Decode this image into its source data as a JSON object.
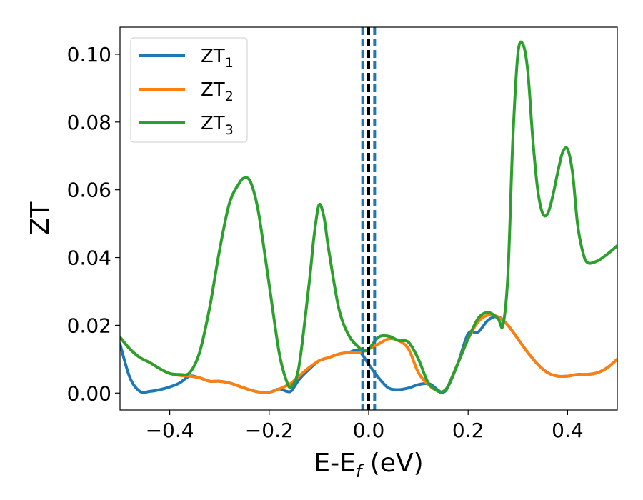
{
  "chart_data": {
    "type": "line",
    "xlabel": "E-E",
    "xlabel_sub": "f",
    "xlabel_unit": " (eV)",
    "ylabel": "ZT",
    "xlim": [
      -0.5,
      0.5
    ],
    "ylim": [
      -0.005,
      0.108
    ],
    "xticks": [
      -0.4,
      -0.2,
      0.0,
      0.2,
      0.4
    ],
    "xtick_labels": [
      "−0.4",
      "−0.2",
      "0.0",
      "0.2",
      "0.4"
    ],
    "yticks": [
      0.0,
      0.02,
      0.04,
      0.06,
      0.08,
      0.1
    ],
    "ytick_labels": [
      "0.00",
      "0.02",
      "0.04",
      "0.06",
      "0.08",
      "0.10"
    ],
    "grid": false,
    "legend_position": "top-left",
    "vertical_lines": [
      {
        "x": -0.012,
        "style": "dashed",
        "color": "#1f77b4"
      },
      {
        "x": 0.0,
        "style": "dashed",
        "color": "#000000"
      },
      {
        "x": 0.012,
        "style": "dashed",
        "color": "#1f77b4"
      }
    ],
    "series": [
      {
        "name": "ZT",
        "name_sub": "1",
        "color": "#1f77b4",
        "x": [
          -0.5,
          -0.48,
          -0.46,
          -0.44,
          -0.42,
          -0.4,
          -0.38,
          -0.36,
          -0.34,
          -0.32,
          -0.3,
          -0.28,
          -0.26,
          -0.24,
          -0.22,
          -0.2,
          -0.18,
          -0.165,
          -0.155,
          -0.14,
          -0.12,
          -0.1,
          -0.08,
          -0.06,
          -0.04,
          -0.02,
          0.0,
          0.02,
          0.04,
          0.06,
          0.08,
          0.1,
          0.12,
          0.13,
          0.14,
          0.15,
          0.16,
          0.18,
          0.2,
          0.22,
          0.24,
          0.26,
          0.28,
          0.3,
          0.32,
          0.34,
          0.36,
          0.38,
          0.4,
          0.42,
          0.44,
          0.46,
          0.48,
          0.5
        ],
        "y": [
          0.0145,
          0.0045,
          0.0005,
          0.0005,
          0.001,
          0.0018,
          0.003,
          0.005,
          0.0045,
          0.0035,
          0.0035,
          0.003,
          0.002,
          0.001,
          0.0003,
          0.0002,
          0.0012,
          0.0005,
          0.0007,
          0.004,
          0.007,
          0.0095,
          0.0105,
          0.0115,
          0.012,
          0.0125,
          0.0085,
          0.0045,
          0.0015,
          0.001,
          0.0015,
          0.0025,
          0.0028,
          0.002,
          0.0008,
          0.0002,
          0.002,
          0.009,
          0.0175,
          0.018,
          0.0215,
          0.0225,
          0.02,
          0.016,
          0.012,
          0.0085,
          0.006,
          0.005,
          0.005,
          0.0055,
          0.0055,
          0.006,
          0.0075,
          0.01
        ]
      },
      {
        "name": "ZT",
        "name_sub": "2",
        "color": "#ff7f0e",
        "x": [
          -0.5,
          -0.48,
          -0.46,
          -0.44,
          -0.42,
          -0.4,
          -0.38,
          -0.36,
          -0.34,
          -0.32,
          -0.3,
          -0.28,
          -0.26,
          -0.24,
          -0.22,
          -0.2,
          -0.18,
          -0.165,
          -0.155,
          -0.14,
          -0.12,
          -0.1,
          -0.08,
          -0.06,
          -0.04,
          -0.02,
          -0.01,
          0.0,
          0.02,
          0.04,
          0.06,
          0.08,
          0.1,
          0.12,
          0.14,
          0.15,
          0.16,
          0.18,
          0.2,
          0.22,
          0.24,
          0.26,
          0.28,
          0.3,
          0.32,
          0.34,
          0.36,
          0.38,
          0.4,
          0.42,
          0.44,
          0.46,
          0.48,
          0.5
        ],
        "y": [
          0.0165,
          0.013,
          0.0105,
          0.009,
          0.0072,
          0.0058,
          0.0052,
          0.005,
          0.0045,
          0.0035,
          0.0035,
          0.003,
          0.002,
          0.001,
          0.0003,
          0.0002,
          0.0012,
          0.0022,
          0.003,
          0.005,
          0.0075,
          0.0095,
          0.0105,
          0.0115,
          0.012,
          0.012,
          0.0123,
          0.013,
          0.0145,
          0.016,
          0.0155,
          0.013,
          0.006,
          0.0025,
          0.0005,
          0.0005,
          0.0022,
          0.009,
          0.016,
          0.021,
          0.023,
          0.0225,
          0.02,
          0.016,
          0.012,
          0.0085,
          0.006,
          0.005,
          0.005,
          0.0055,
          0.0055,
          0.006,
          0.0075,
          0.01
        ]
      },
      {
        "name": "ZT",
        "name_sub": "3",
        "color": "#2ca02c",
        "x": [
          -0.5,
          -0.48,
          -0.46,
          -0.44,
          -0.42,
          -0.4,
          -0.38,
          -0.36,
          -0.34,
          -0.32,
          -0.3,
          -0.28,
          -0.26,
          -0.25,
          -0.24,
          -0.23,
          -0.22,
          -0.2,
          -0.18,
          -0.165,
          -0.155,
          -0.14,
          -0.12,
          -0.11,
          -0.1,
          -0.09,
          -0.08,
          -0.06,
          -0.04,
          -0.02,
          -0.01,
          0.0,
          0.02,
          0.04,
          0.06,
          0.08,
          0.1,
          0.12,
          0.14,
          0.15,
          0.16,
          0.18,
          0.2,
          0.22,
          0.24,
          0.26,
          0.27,
          0.28,
          0.29,
          0.3,
          0.31,
          0.32,
          0.33,
          0.34,
          0.35,
          0.36,
          0.37,
          0.38,
          0.39,
          0.4,
          0.41,
          0.42,
          0.43,
          0.44,
          0.46,
          0.48,
          0.5
        ],
        "y": [
          0.0165,
          0.013,
          0.0105,
          0.009,
          0.0072,
          0.0058,
          0.0055,
          0.006,
          0.012,
          0.025,
          0.042,
          0.056,
          0.062,
          0.0635,
          0.063,
          0.059,
          0.052,
          0.032,
          0.012,
          0.0035,
          0.002,
          0.008,
          0.032,
          0.046,
          0.0555,
          0.052,
          0.042,
          0.025,
          0.017,
          0.0135,
          0.0125,
          0.013,
          0.0165,
          0.0168,
          0.0155,
          0.015,
          0.01,
          0.003,
          0.0005,
          0.0005,
          0.0022,
          0.009,
          0.016,
          0.022,
          0.0238,
          0.022,
          0.02,
          0.035,
          0.075,
          0.1,
          0.103,
          0.095,
          0.075,
          0.06,
          0.053,
          0.053,
          0.058,
          0.065,
          0.071,
          0.072,
          0.065,
          0.05,
          0.042,
          0.0385,
          0.039,
          0.041,
          0.0435
        ]
      }
    ]
  }
}
